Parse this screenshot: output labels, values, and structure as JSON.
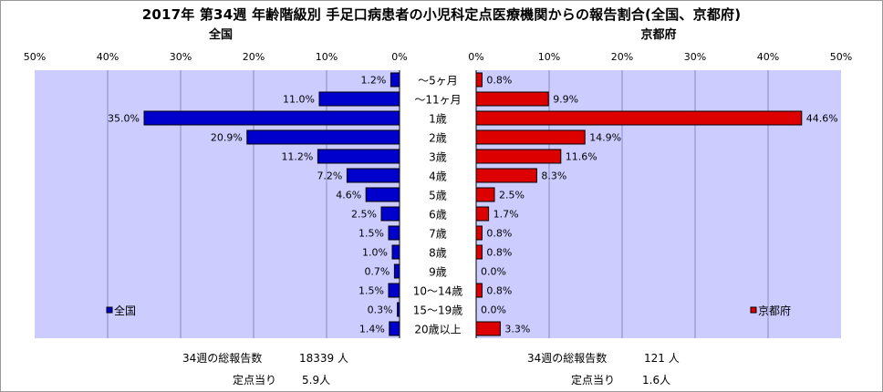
{
  "title": "2017年 第34週 年齢階級別 手足口病患者の小児科定点医療機関からの報告割合(全国、京都府)",
  "chart_data": [
    {
      "type": "bar",
      "orientation": "horizontal",
      "panel": "left",
      "title": "全国",
      "categories": [
        "～5ヶ月",
        "～11ヶ月",
        "1歳",
        "2歳",
        "3歳",
        "4歳",
        "5歳",
        "6歳",
        "7歳",
        "8歳",
        "9歳",
        "10～14歳",
        "15～19歳",
        "20歳以上"
      ],
      "series": [
        {
          "name": "全国",
          "color": "#0000cc",
          "values": [
            1.2,
            11.0,
            35.0,
            20.9,
            11.2,
            7.2,
            4.6,
            2.5,
            1.5,
            1.0,
            0.7,
            1.5,
            0.3,
            1.4
          ],
          "labels": [
            "1.2%",
            "11.0%",
            "35.0%",
            "20.9%",
            "11.2%",
            "7.2%",
            "4.6%",
            "2.5%",
            "1.5%",
            "1.0%",
            "0.7%",
            "1.5%",
            "0.3%",
            "1.4%"
          ]
        }
      ],
      "xlim": [
        0,
        50
      ],
      "reversed": true,
      "ticks": [
        "0%",
        "10%",
        "20%",
        "30%",
        "40%",
        "50%"
      ],
      "grid": true,
      "legend": "bottom-left"
    },
    {
      "type": "bar",
      "orientation": "horizontal",
      "panel": "right",
      "title": "京都府",
      "categories": [
        "～5ヶ月",
        "～11ヶ月",
        "1歳",
        "2歳",
        "3歳",
        "4歳",
        "5歳",
        "6歳",
        "7歳",
        "8歳",
        "9歳",
        "10～14歳",
        "15～19歳",
        "20歳以上"
      ],
      "series": [
        {
          "name": "京都府",
          "color": "#dd0000",
          "values": [
            0.8,
            9.9,
            44.6,
            14.9,
            11.6,
            8.3,
            2.5,
            1.7,
            0.8,
            0.8,
            0.0,
            0.8,
            0.0,
            3.3
          ],
          "labels": [
            "0.8%",
            "9.9%",
            "44.6%",
            "14.9%",
            "11.6%",
            "8.3%",
            "2.5%",
            "1.7%",
            "0.8%",
            "0.8%",
            "0.0%",
            "0.8%",
            "0.0%",
            "3.3%"
          ]
        }
      ],
      "xlim": [
        0,
        50
      ],
      "ticks": [
        "0%",
        "10%",
        "20%",
        "30%",
        "40%",
        "50%"
      ],
      "grid": true,
      "legend": "bottom-right"
    }
  ],
  "left_stats": {
    "total_label": "34週の総報告数",
    "total_value": "18339 人",
    "per_label": "定点当り",
    "per_value": "5.9人"
  },
  "right_stats": {
    "total_label": "34週の総報告数",
    "total_value": "121 人",
    "per_label": "定点当り",
    "per_value": "1.6人"
  },
  "colors": {
    "plot_bg": "#ccccff",
    "grid": "#8c8cc8"
  }
}
